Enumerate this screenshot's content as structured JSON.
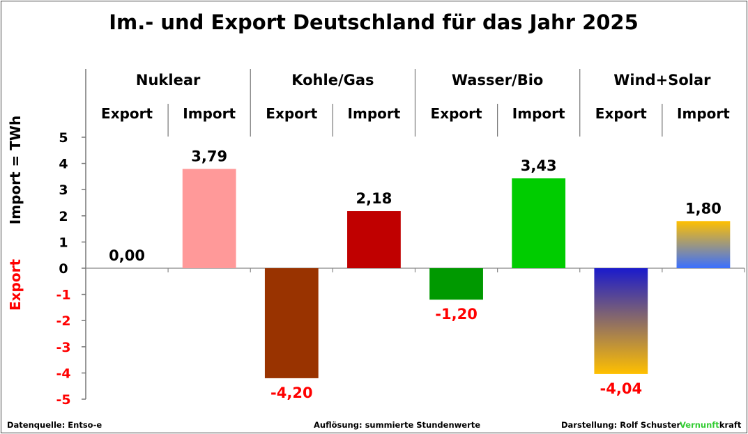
{
  "chart_data": {
    "type": "bar",
    "title": "Im.- und Export Deutschland für das Jahr 2025",
    "categories": [
      "Nuklear",
      "Kohle/Gas",
      "Wasser/Bio",
      "Wind+Solar"
    ],
    "subcategories": [
      "Export",
      "Import"
    ],
    "y_label_import": "Import =  TWh",
    "y_label_export": "Export",
    "ylim": [
      -5,
      5
    ],
    "yticks": [
      5,
      4,
      3,
      2,
      1,
      0,
      -1,
      -2,
      -3,
      -4,
      -5
    ],
    "grid": false,
    "bars": [
      {
        "category": "Nuklear",
        "sub": "Export",
        "value": 0.0,
        "label": "0,00",
        "color": "#000000"
      },
      {
        "category": "Nuklear",
        "sub": "Import",
        "value": 3.79,
        "label": "3,79",
        "color": "#ff9999"
      },
      {
        "category": "Kohle/Gas",
        "sub": "Export",
        "value": -4.2,
        "label": "-4,20",
        "color": "#993300"
      },
      {
        "category": "Kohle/Gas",
        "sub": "Import",
        "value": 2.18,
        "label": "2,18",
        "color": "#c00000"
      },
      {
        "category": "Wasser/Bio",
        "sub": "Export",
        "value": -1.2,
        "label": "-1,20",
        "color": "#009900"
      },
      {
        "category": "Wasser/Bio",
        "sub": "Import",
        "value": 3.43,
        "label": "3,43",
        "color": "#00cc00"
      },
      {
        "category": "Wind+Solar",
        "sub": "Export",
        "value": -4.04,
        "label": "-4,04",
        "color": "gradient-blue-to-gold"
      },
      {
        "category": "Wind+Solar",
        "sub": "Import",
        "value": 1.8,
        "label": "1,80",
        "color": "gradient-gold-to-blue"
      }
    ],
    "colors": {
      "positive_text": "#000000",
      "negative_text": "#ff0000",
      "gradient_blue": "#1a1acc",
      "gradient_gold": "#ffc000",
      "gradient_light_blue": "#3a6fff"
    }
  },
  "footer": {
    "source": "Datenquelle: Entso-e",
    "resolution": "Auflösung: summierte Stundenwerte",
    "author": "Darstellung:  Rolf Schuster",
    "brand_green": "Vernunft",
    "brand_black": "kraft",
    "brand_color": "#33cc33"
  }
}
